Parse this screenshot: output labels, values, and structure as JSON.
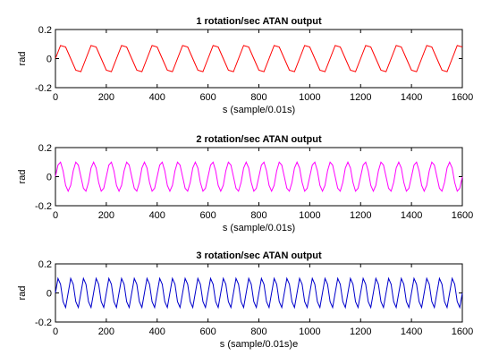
{
  "chart_data": [
    {
      "type": "line",
      "title": "1 rotation/sec ATAN output",
      "xlabel": "s (sample/0.01s)",
      "ylabel": "rad",
      "xlim": [
        0,
        1600
      ],
      "ylim": [
        -0.2,
        0.2
      ],
      "xticks": [
        0,
        200,
        400,
        600,
        800,
        1000,
        1200,
        1400,
        1600
      ],
      "yticks": [
        -0.2,
        0,
        0.2
      ],
      "xtick_labels": [
        "0",
        "200",
        "400",
        "600",
        "800",
        "1000",
        "1200",
        "1400",
        "1600"
      ],
      "ytick_labels": [
        "-0.2",
        "0",
        "0.2"
      ],
      "grid": false,
      "series": [
        {
          "color": "#ff0000",
          "x": [
            0,
            20,
            40,
            60,
            80,
            100,
            120,
            140,
            160,
            180,
            200,
            220,
            240,
            260,
            280,
            300,
            320,
            340,
            360,
            380,
            400,
            420,
            440,
            460,
            480,
            500,
            520,
            540,
            560,
            580,
            600,
            620,
            640,
            660,
            680,
            700,
            720,
            740,
            760,
            780,
            800,
            820,
            840,
            860,
            880,
            900,
            920,
            940,
            960,
            980,
            1000,
            1020,
            1040,
            1060,
            1080,
            1100,
            1120,
            1140,
            1160,
            1180,
            1200,
            1220,
            1240,
            1260,
            1280,
            1300,
            1320,
            1340,
            1360,
            1380,
            1400,
            1420,
            1440,
            1460,
            1480,
            1500,
            1520,
            1540,
            1560,
            1580,
            1600
          ],
          "y": [
            0.0,
            0.09,
            0.08,
            0.0,
            -0.08,
            -0.09,
            0.0,
            0.09,
            0.08,
            0.0,
            -0.08,
            -0.09,
            0.0,
            0.09,
            0.08,
            0.0,
            -0.08,
            -0.09,
            0.0,
            0.09,
            0.08,
            0.0,
            -0.08,
            -0.09,
            0.0,
            0.09,
            0.08,
            0.0,
            -0.08,
            -0.09,
            0.0,
            0.09,
            0.08,
            0.0,
            -0.08,
            -0.09,
            0.0,
            0.09,
            0.08,
            0.0,
            -0.08,
            -0.09,
            0.0,
            0.09,
            0.08,
            0.0,
            -0.08,
            -0.09,
            0.0,
            0.09,
            0.08,
            0.0,
            -0.08,
            -0.09,
            0.0,
            0.09,
            0.08,
            0.0,
            -0.08,
            -0.09,
            0.0,
            0.09,
            0.08,
            0.0,
            -0.08,
            -0.09,
            0.0,
            0.09,
            0.08,
            0.0,
            -0.08,
            -0.09,
            0.0,
            0.09,
            0.08,
            0.0,
            -0.08,
            -0.09,
            0.0,
            0.09,
            0.08
          ]
        }
      ]
    },
    {
      "type": "line",
      "title": "2 rotation/sec ATAN output",
      "xlabel": "s (sample/0.01s)",
      "ylabel": "rad",
      "xlim": [
        0,
        1600
      ],
      "ylim": [
        -0.2,
        0.2
      ],
      "xticks": [
        0,
        200,
        400,
        600,
        800,
        1000,
        1200,
        1400,
        1600
      ],
      "yticks": [
        -0.2,
        0,
        0.2
      ],
      "xtick_labels": [
        "0",
        "200",
        "400",
        "600",
        "800",
        "1000",
        "1200",
        "1400",
        "1600"
      ],
      "ytick_labels": [
        "-0.2",
        "0",
        "0.2"
      ],
      "grid": false,
      "series": [
        {
          "color": "#ff00ff",
          "x": [
            0,
            10,
            20,
            30,
            40,
            50,
            60,
            70,
            80,
            90,
            100,
            110,
            120,
            130,
            140,
            150,
            160,
            170,
            180,
            190,
            200,
            210,
            220,
            230,
            240,
            250,
            260,
            270,
            280,
            290,
            300,
            310,
            320,
            330,
            340,
            350,
            360,
            370,
            380,
            390,
            400,
            410,
            420,
            430,
            440,
            450,
            460,
            470,
            480,
            490,
            500,
            510,
            520,
            530,
            540,
            550,
            560,
            570,
            580,
            590,
            600,
            610,
            620,
            630,
            640,
            650,
            660,
            670,
            680,
            690,
            700,
            710,
            720,
            730,
            740,
            750,
            760,
            770,
            780,
            790,
            800,
            810,
            820,
            830,
            840,
            850,
            860,
            870,
            880,
            890,
            900,
            910,
            920,
            930,
            940,
            950,
            960,
            970,
            980,
            990,
            1000,
            1010,
            1020,
            1030,
            1040,
            1050,
            1060,
            1070,
            1080,
            1090,
            1100,
            1110,
            1120,
            1130,
            1140,
            1150,
            1160,
            1170,
            1180,
            1190,
            1200,
            1210,
            1220,
            1230,
            1240,
            1250,
            1260,
            1270,
            1280,
            1290,
            1300,
            1310,
            1320,
            1330,
            1340,
            1350,
            1360,
            1370,
            1380,
            1390,
            1400,
            1410,
            1420,
            1430,
            1440,
            1450,
            1460,
            1470,
            1480,
            1490,
            1500,
            1510,
            1520,
            1530,
            1540,
            1550,
            1560,
            1570,
            1580,
            1590,
            1600
          ],
          "y": [
            0.0,
            0.08,
            0.1,
            0.04,
            -0.06,
            -0.1,
            -0.06,
            0.04,
            0.1,
            0.08,
            0.0,
            -0.08,
            -0.1,
            -0.04,
            0.06,
            0.1,
            0.06,
            -0.04,
            -0.1,
            -0.08,
            0.0,
            0.08,
            0.1,
            0.04,
            -0.06,
            -0.1,
            -0.06,
            0.04,
            0.1,
            0.08,
            0.0,
            -0.08,
            -0.1,
            -0.04,
            0.06,
            0.1,
            0.06,
            -0.04,
            -0.1,
            -0.08,
            0.0,
            0.08,
            0.1,
            0.04,
            -0.06,
            -0.1,
            -0.06,
            0.04,
            0.1,
            0.08,
            0.0,
            -0.08,
            -0.1,
            -0.04,
            0.06,
            0.1,
            0.06,
            -0.04,
            -0.1,
            -0.08,
            0.0,
            0.08,
            0.1,
            0.04,
            -0.06,
            -0.1,
            -0.06,
            0.04,
            0.1,
            0.08,
            0.0,
            -0.08,
            -0.1,
            -0.04,
            0.06,
            0.1,
            0.06,
            -0.04,
            -0.1,
            -0.08,
            0.0,
            0.08,
            0.1,
            0.04,
            -0.06,
            -0.1,
            -0.06,
            0.04,
            0.1,
            0.08,
            0.0,
            -0.08,
            -0.1,
            -0.04,
            0.06,
            0.1,
            0.06,
            -0.04,
            -0.1,
            -0.08,
            0.0,
            0.08,
            0.1,
            0.04,
            -0.06,
            -0.1,
            -0.06,
            0.04,
            0.1,
            0.08,
            0.0,
            -0.08,
            -0.1,
            -0.04,
            0.06,
            0.1,
            0.06,
            -0.04,
            -0.1,
            -0.08,
            0.0,
            0.08,
            0.1,
            0.04,
            -0.06,
            -0.1,
            -0.06,
            0.04,
            0.1,
            0.08,
            0.0,
            -0.08,
            -0.1,
            -0.04,
            0.06,
            0.1,
            0.06,
            -0.04,
            -0.1,
            -0.08,
            0.0,
            0.08,
            0.1,
            0.04,
            -0.06,
            -0.1,
            -0.06,
            0.04,
            0.1,
            0.08,
            0.0,
            -0.08,
            -0.1,
            -0.04,
            0.06,
            0.1,
            0.06,
            -0.04,
            -0.1,
            -0.08,
            0.0
          ]
        }
      ]
    },
    {
      "type": "line",
      "title": "3 rotation/sec ATAN output",
      "xlabel": "s (sample/0.01s)e",
      "ylabel": "rad",
      "xlim": [
        0,
        1600
      ],
      "ylim": [
        -0.2,
        0.2
      ],
      "xticks": [
        0,
        200,
        400,
        600,
        800,
        1000,
        1200,
        1400,
        1600
      ],
      "yticks": [
        -0.2,
        0,
        0.2
      ],
      "xtick_labels": [
        "0",
        "200",
        "400",
        "600",
        "800",
        "1000",
        "1200",
        "1400",
        "1600"
      ],
      "ytick_labels": [
        "-0.2",
        "0",
        "0.2"
      ],
      "grid": false,
      "series": [
        {
          "color": "#0000cc",
          "x": [
            0,
            10,
            20,
            30,
            40,
            50,
            60,
            70,
            80,
            90,
            100,
            110,
            120,
            130,
            140,
            150,
            160,
            170,
            180,
            190,
            200,
            210,
            220,
            230,
            240,
            250,
            260,
            270,
            280,
            290,
            300,
            310,
            320,
            330,
            340,
            350,
            360,
            370,
            380,
            390,
            400,
            410,
            420,
            430,
            440,
            450,
            460,
            470,
            480,
            490,
            500,
            510,
            520,
            530,
            540,
            550,
            560,
            570,
            580,
            590,
            600,
            610,
            620,
            630,
            640,
            650,
            660,
            670,
            680,
            690,
            700,
            710,
            720,
            730,
            740,
            750,
            760,
            770,
            780,
            790,
            800,
            810,
            820,
            830,
            840,
            850,
            860,
            870,
            880,
            890,
            900,
            910,
            920,
            930,
            940,
            950,
            960,
            970,
            980,
            990,
            1000,
            1010,
            1020,
            1030,
            1040,
            1050,
            1060,
            1070,
            1080,
            1090,
            1100,
            1110,
            1120,
            1130,
            1140,
            1150,
            1160,
            1170,
            1180,
            1190,
            1200,
            1210,
            1220,
            1230,
            1240,
            1250,
            1260,
            1270,
            1280,
            1290,
            1300,
            1310,
            1320,
            1330,
            1340,
            1350,
            1360,
            1370,
            1380,
            1390,
            1400,
            1410,
            1420,
            1430,
            1440,
            1450,
            1460,
            1470,
            1480,
            1490,
            1500,
            1510,
            1520,
            1530,
            1540,
            1550,
            1560,
            1570,
            1580,
            1590,
            1600
          ],
          "y": [
            0.0,
            0.1,
            0.06,
            -0.06,
            -0.1,
            0.0,
            0.1,
            0.06,
            -0.06,
            -0.1,
            0.0,
            0.1,
            0.06,
            -0.06,
            -0.1,
            0.0,
            0.1,
            0.06,
            -0.06,
            -0.1,
            0.0,
            0.1,
            0.06,
            -0.06,
            -0.1,
            0.0,
            0.1,
            0.06,
            -0.06,
            -0.1,
            0.0,
            0.1,
            0.06,
            -0.06,
            -0.1,
            0.0,
            0.1,
            0.06,
            -0.06,
            -0.1,
            0.0,
            0.1,
            0.06,
            -0.06,
            -0.1,
            0.0,
            0.1,
            0.06,
            -0.06,
            -0.1,
            0.0,
            0.1,
            0.06,
            -0.06,
            -0.1,
            0.0,
            0.1,
            0.06,
            -0.06,
            -0.1,
            0.0,
            0.1,
            0.06,
            -0.06,
            -0.1,
            0.0,
            0.1,
            0.06,
            -0.06,
            -0.1,
            0.0,
            0.1,
            0.06,
            -0.06,
            -0.1,
            0.0,
            0.1,
            0.06,
            -0.06,
            -0.1,
            0.0,
            0.1,
            0.06,
            -0.06,
            -0.1,
            0.0,
            0.1,
            0.06,
            -0.06,
            -0.1,
            0.0,
            0.1,
            0.06,
            -0.06,
            -0.1,
            0.0,
            0.1,
            0.06,
            -0.06,
            -0.1,
            0.0,
            0.1,
            0.06,
            -0.06,
            -0.1,
            0.0,
            0.1,
            0.06,
            -0.06,
            -0.1,
            0.0,
            0.1,
            0.06,
            -0.06,
            -0.1,
            0.0,
            0.1,
            0.06,
            -0.06,
            -0.1,
            0.0,
            0.1,
            0.06,
            -0.06,
            -0.1,
            0.0,
            0.1,
            0.06,
            -0.06,
            -0.1,
            0.0,
            0.1,
            0.06,
            -0.06,
            -0.1,
            0.0,
            0.1,
            0.06,
            -0.06,
            -0.1,
            0.0,
            0.1,
            0.06,
            -0.06,
            -0.1,
            0.0,
            0.1,
            0.06,
            -0.06,
            -0.1,
            0.0,
            0.1,
            0.06,
            -0.06,
            -0.1,
            0.0,
            0.1,
            0.06,
            -0.06,
            -0.1,
            0.0
          ]
        }
      ]
    }
  ]
}
